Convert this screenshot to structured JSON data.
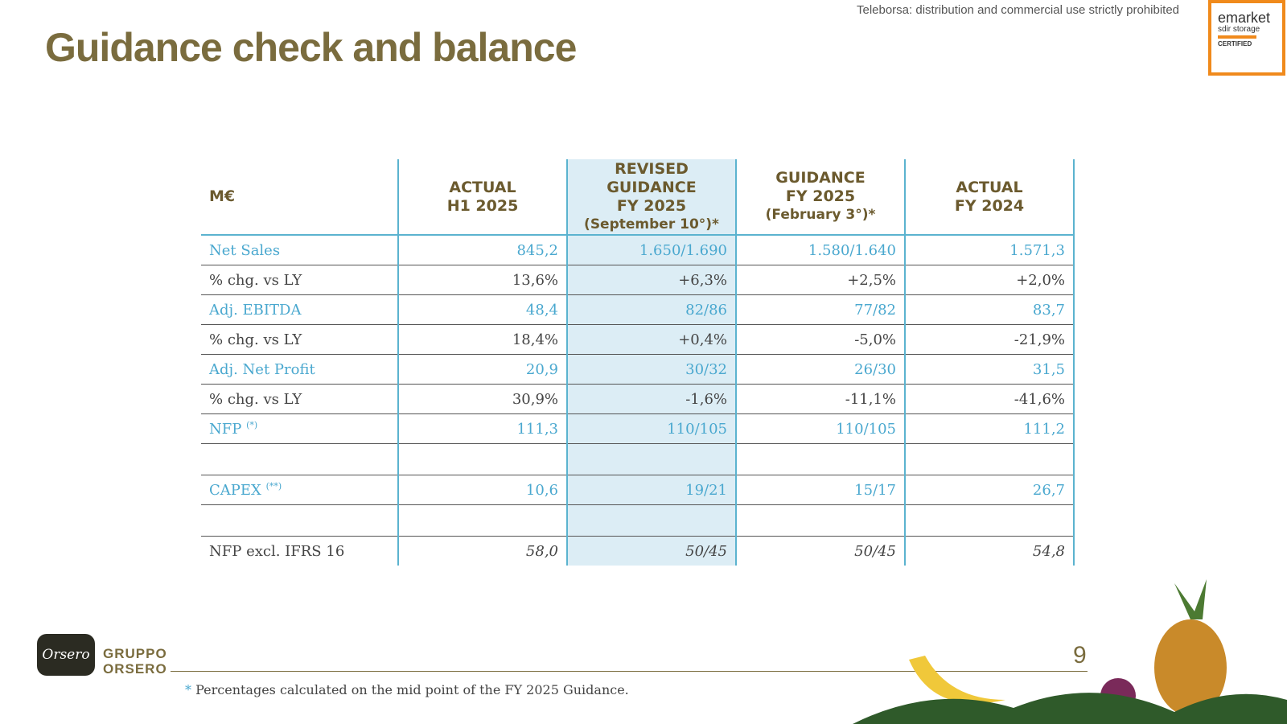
{
  "watermark": "Teleborsa: distribution and commercial use strictly prohibited",
  "badge": {
    "brand": "emarket",
    "sub": "sdir storage",
    "status": "CERTIFIED"
  },
  "title": "Guidance check and balance",
  "table": {
    "header": [
      [
        "M€"
      ],
      [
        "ACTUAL",
        "H1 2025"
      ],
      [
        "REVISED",
        "GUIDANCE",
        "FY 2025",
        "(September 10°)*"
      ],
      [
        "GUIDANCE",
        "FY 2025",
        "(February 3°)*"
      ],
      [
        "ACTUAL",
        "FY 2024"
      ]
    ],
    "groups": [
      [
        {
          "label": "Net Sales",
          "cells": [
            "845,2",
            "1.650/1.690",
            "1.580/1.640",
            "1.571,3"
          ]
        },
        {
          "label": "% chg. vs LY",
          "cells": [
            "13,6%",
            "+6,3%",
            "+2,5%",
            "+2,0%"
          ]
        },
        {
          "label": "Adj. EBITDA",
          "cells": [
            "48,4",
            "82/86",
            "77/82",
            "83,7"
          ]
        },
        {
          "label": "% chg. vs LY",
          "cells": [
            "18,4%",
            "+0,4%",
            "-5,0%",
            "-21,9%"
          ]
        },
        {
          "label": "Adj. Net Profit",
          "cells": [
            "20,9",
            "30/32",
            "26/30",
            "31,5"
          ]
        },
        {
          "label": "% chg. vs LY",
          "cells": [
            "30,9%",
            "-1,6%",
            "-11,1%",
            "-41,6%"
          ]
        },
        {
          "label": "NFP",
          "note": "(*)",
          "cells": [
            "111,3",
            "110/105",
            "110/105",
            "111,2"
          ]
        }
      ],
      [
        {
          "label": "CAPEX",
          "note": "(**)",
          "cells": [
            "10,6",
            "19/21",
            "15/17",
            "26,7"
          ]
        }
      ],
      [
        {
          "label": "NFP excl. IFRS 16",
          "cells": [
            "58,0",
            "50/45",
            "50/45",
            "54,8"
          ]
        }
      ]
    ]
  },
  "footer": {
    "logo_script": "Orsero",
    "logo_lines": [
      "GRUPPO",
      "ORSERO"
    ],
    "page": "9",
    "footnote_mark": "*",
    "footnote": "Percentages calculated on the mid point of the FY 2025 Guidance."
  }
}
